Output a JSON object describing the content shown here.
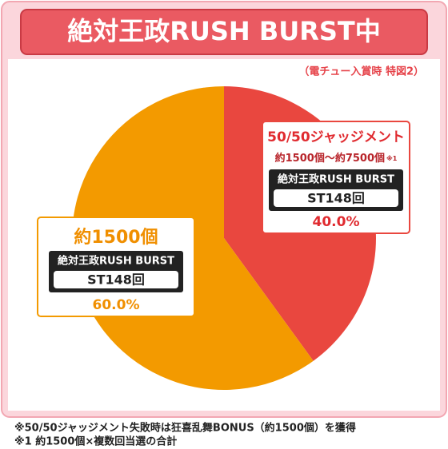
{
  "chart_data": {
    "type": "pie",
    "title": "絶対王政RUSH BURST中",
    "subtitle": "（電チュー入賞時 特図2）",
    "categories": [
      "50/50ジャッジメント",
      "約1500個"
    ],
    "details": [
      "約1500個～約7500個",
      null
    ],
    "detail_notes": [
      "※1",
      null
    ],
    "modes": [
      "絶対王政RUSH BURST",
      "絶対王政RUSH BURST"
    ],
    "st_labels": [
      "ST148回",
      "ST148回"
    ],
    "values": [
      40,
      60
    ],
    "value_labels": [
      "40.0%",
      "60.0%"
    ],
    "colors": [
      "#e9473f",
      "#f39a00"
    ]
  },
  "notes": [
    "※50/50ジャッジメント失敗時は狂喜乱舞BONUS（約1500個）を獲得",
    "※1 約1500個×複数回当選の合計"
  ]
}
